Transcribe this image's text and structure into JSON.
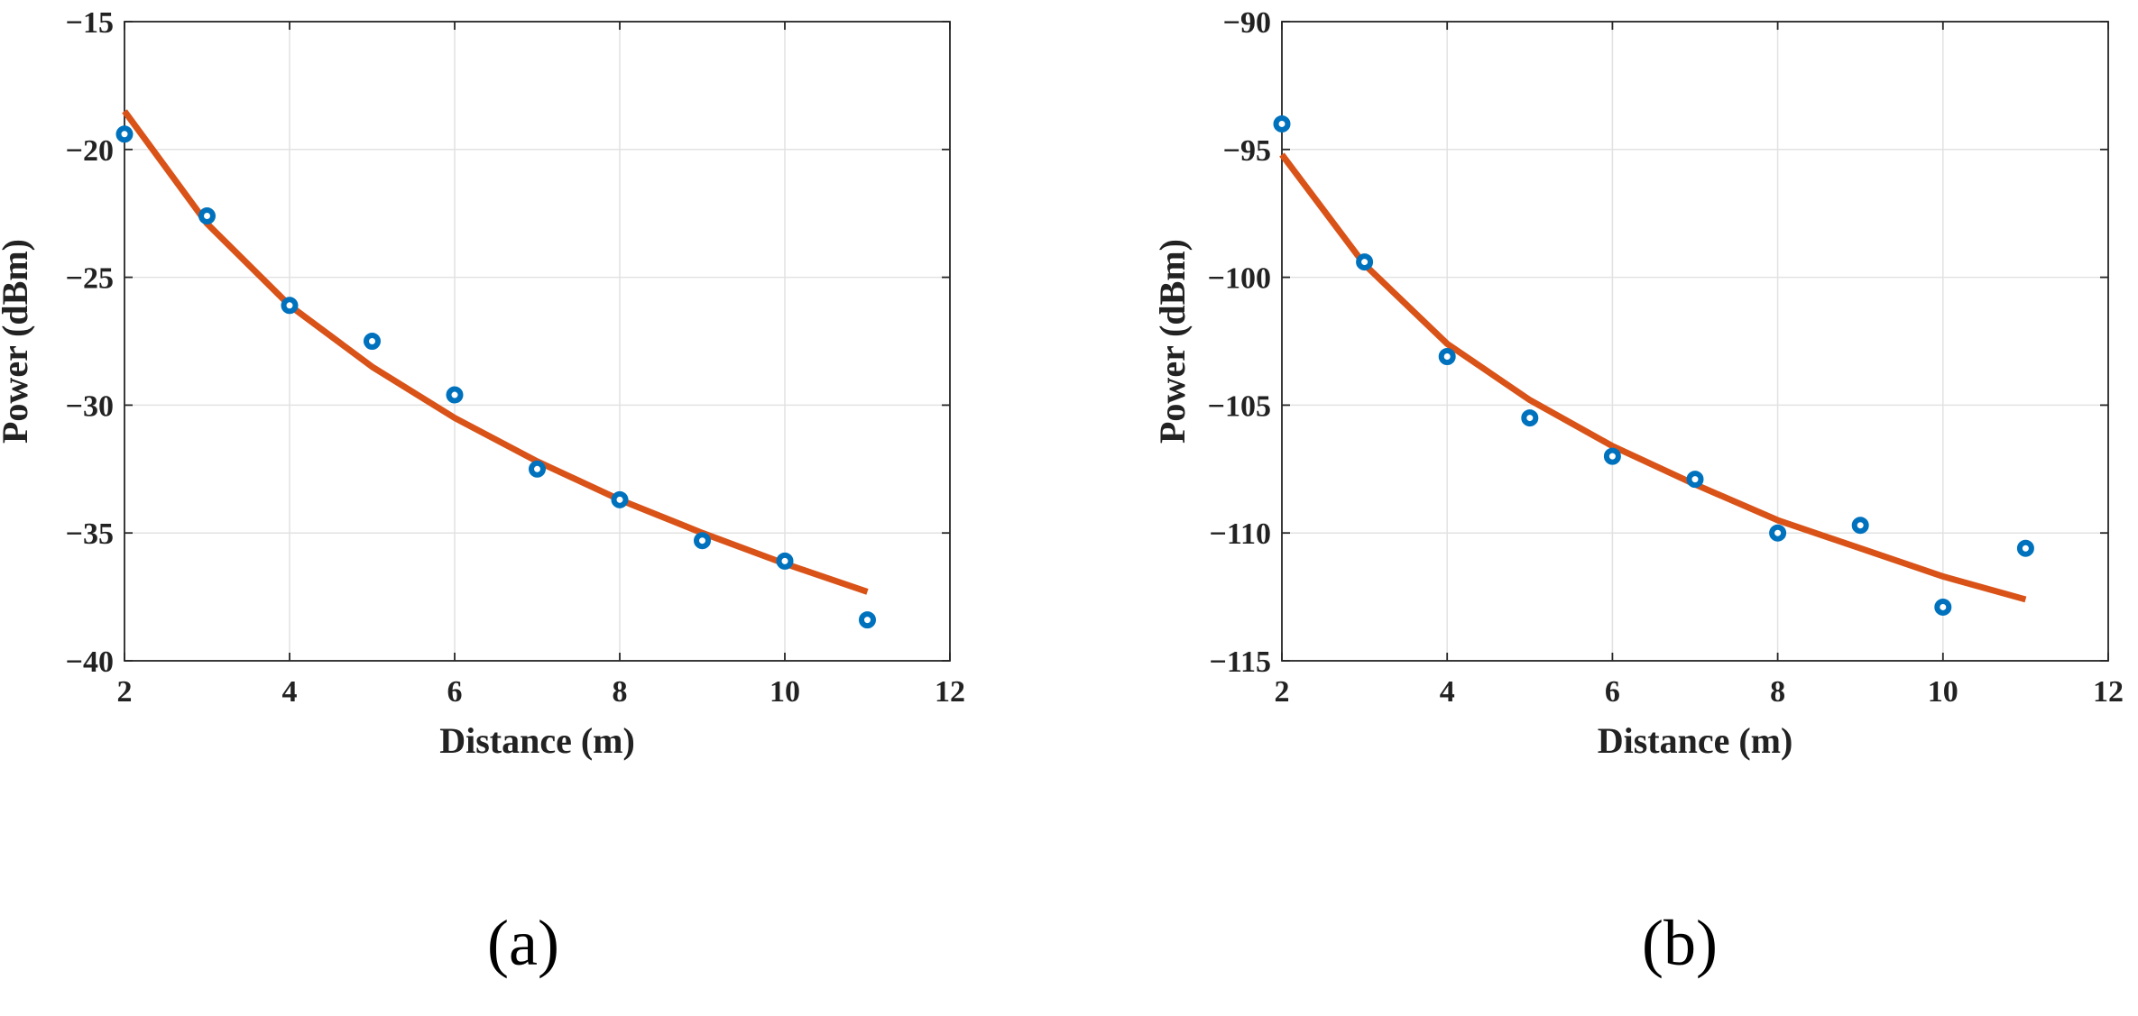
{
  "chart_data": [
    {
      "type": "scatter",
      "xlabel": "Distance (m)",
      "ylabel": "Power (dBm)",
      "xlim": [
        2,
        12
      ],
      "ylim": [
        -40,
        -15
      ],
      "xticks": [
        2,
        4,
        6,
        8,
        10,
        12
      ],
      "yticks": [
        -40,
        -35,
        -30,
        -25,
        -20,
        -15
      ],
      "ytick_labels": [
        "−40",
        "−35",
        "−30",
        "−25",
        "−20",
        "−15"
      ],
      "grid": true,
      "panel_label": "(a)",
      "series": [
        {
          "kind": "scatter",
          "color": "#0072BD",
          "x": [
            2,
            3,
            4,
            5,
            6,
            7,
            8,
            9,
            10,
            11
          ],
          "y": [
            -19.4,
            -22.6,
            -26.1,
            -27.5,
            -29.6,
            -32.5,
            -33.7,
            -35.3,
            -36.1,
            -38.4
          ]
        },
        {
          "kind": "line",
          "color": "#D95319",
          "x": [
            2,
            3,
            4,
            5,
            6,
            7,
            8,
            9,
            10,
            11
          ],
          "y": [
            -18.5,
            -22.9,
            -26.1,
            -28.5,
            -30.5,
            -32.2,
            -33.7,
            -35.0,
            -36.2,
            -37.3
          ]
        }
      ]
    },
    {
      "type": "scatter",
      "xlabel": "Distance (m)",
      "ylabel": "Power (dBm)",
      "xlim": [
        2,
        12
      ],
      "ylim": [
        -115,
        -90
      ],
      "xticks": [
        2,
        4,
        6,
        8,
        10,
        12
      ],
      "yticks": [
        -115,
        -110,
        -105,
        -100,
        -95,
        -90
      ],
      "ytick_labels": [
        "−115",
        "−110",
        "−105",
        "−100",
        "−95",
        "−90"
      ],
      "grid": true,
      "panel_label": "(b)",
      "series": [
        {
          "kind": "scatter",
          "color": "#0072BD",
          "x": [
            2,
            3,
            4,
            5,
            6,
            7,
            8,
            9,
            10,
            11
          ],
          "y": [
            -94.0,
            -99.4,
            -103.1,
            -105.5,
            -107.0,
            -107.9,
            -110.0,
            -109.7,
            -112.9,
            -110.6
          ]
        },
        {
          "kind": "line",
          "color": "#D95319",
          "x": [
            2,
            3,
            4,
            5,
            6,
            7,
            8,
            9,
            10,
            11
          ],
          "y": [
            -95.2,
            -99.5,
            -102.6,
            -104.8,
            -106.6,
            -108.1,
            -109.5,
            -110.6,
            -111.7,
            -112.6
          ]
        }
      ]
    }
  ]
}
